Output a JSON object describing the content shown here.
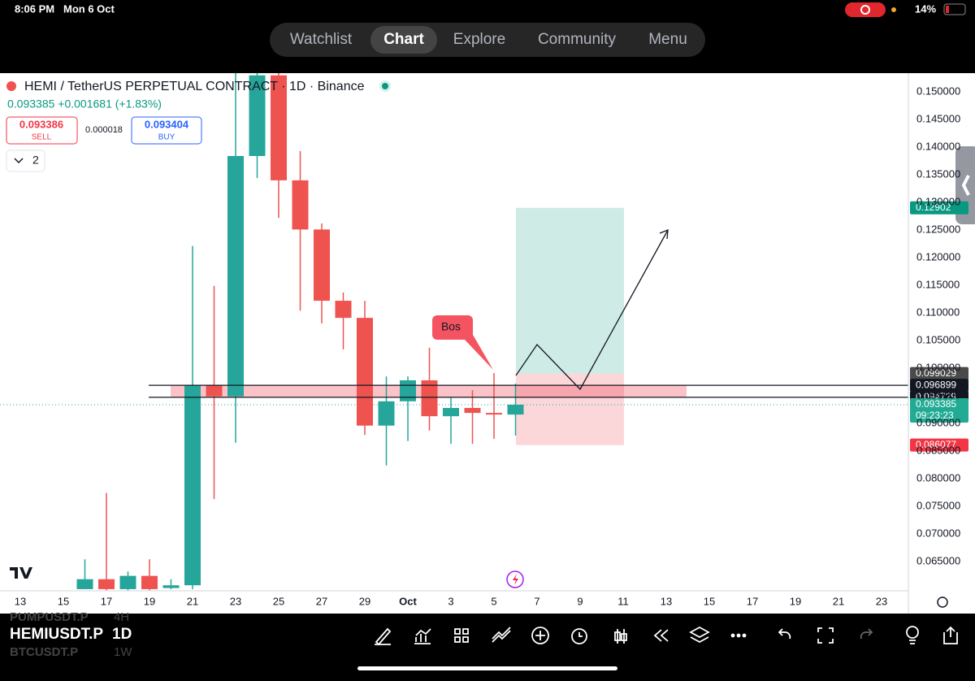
{
  "status_bar": {
    "time": "8:06 PM",
    "date": "Mon 6 Oct",
    "battery": "14%"
  },
  "nav": {
    "tabs": [
      "Watchlist",
      "Chart",
      "Explore",
      "Community",
      "Menu"
    ]
  },
  "chart_header": {
    "title": "HEMI / TetherUS PERPETUAL CONTRACT · 1D · Binance",
    "price_line": "0.093385 +0.001681 (+1.83%)",
    "sell_price": "0.093386",
    "sell_label": "SELL",
    "spread": "0.000018",
    "buy_price": "0.093404",
    "buy_label": "BUY",
    "indicator_count": "2"
  },
  "chart_data": {
    "type": "candlestick",
    "x": [
      "13",
      null,
      "15",
      null,
      "17",
      null,
      "19",
      null,
      "21",
      null,
      "23",
      null,
      "25",
      null,
      "27",
      null,
      "29",
      null,
      "Oct",
      null,
      "3",
      null,
      "5",
      null,
      "7",
      null,
      "9",
      null,
      "11",
      null,
      "13",
      null,
      "15",
      null,
      "17",
      null,
      "19",
      null,
      "21",
      null,
      "23"
    ],
    "open": [
      null,
      null,
      null,
      0.06,
      0.0618,
      0.06,
      0.0624,
      0.0602,
      0.0607,
      0.0969,
      0.0949,
      0.1384,
      0.153,
      0.134,
      0.1251,
      0.1122,
      0.1091,
      0.0896,
      0.094,
      0.0978,
      0.0913,
      0.0928,
      0.0919,
      0.0916,
      null,
      null,
      null,
      null,
      null,
      null,
      null,
      null,
      null,
      null,
      null,
      null,
      null,
      null,
      null,
      null,
      null
    ],
    "high": [
      null,
      null,
      null,
      0.0654,
      0.0774,
      0.0632,
      0.0654,
      0.0618,
      0.1221,
      0.1149,
      0.1534,
      0.1534,
      0.1534,
      0.1393,
      0.1262,
      0.1137,
      0.1122,
      0.0985,
      0.0985,
      0.1037,
      0.0947,
      0.096,
      0.0991,
      0.0972,
      null,
      null,
      null,
      null,
      null,
      null,
      null,
      null,
      null,
      null,
      null,
      null,
      null,
      null,
      null,
      null,
      null
    ],
    "low": [
      null,
      null,
      null,
      0.06,
      0.0598,
      0.0598,
      0.0598,
      0.06,
      0.06,
      0.0763,
      0.0865,
      0.1344,
      0.1272,
      0.1104,
      0.1081,
      0.1034,
      0.0879,
      0.0824,
      0.0868,
      0.0887,
      0.0863,
      0.0863,
      0.0872,
      0.0878,
      null,
      null,
      null,
      null,
      null,
      null,
      null,
      null,
      null,
      null,
      null,
      null,
      null,
      null,
      null,
      null,
      null
    ],
    "close": [
      null,
      null,
      null,
      0.0618,
      0.06,
      0.0624,
      0.06,
      0.0607,
      0.0969,
      0.0949,
      0.1384,
      0.153,
      0.134,
      0.1251,
      0.1122,
      0.1091,
      0.0896,
      0.094,
      0.0978,
      0.0913,
      0.0928,
      0.0919,
      0.0916,
      0.093385,
      null,
      null,
      null,
      null,
      null,
      null,
      null,
      null,
      null,
      null,
      null,
      null,
      null,
      null,
      null,
      null,
      null
    ],
    "up_color": "#26a69a",
    "down_color": "#ef5350",
    "ylim": [
      0.0597,
      0.1534
    ],
    "yticks": [
      {
        "value": 0.15,
        "label": "0.150000"
      },
      {
        "value": 0.145,
        "label": "0.145000"
      },
      {
        "value": 0.14,
        "label": "0.140000"
      },
      {
        "value": 0.135,
        "label": "0.135000"
      },
      {
        "value": 0.13,
        "label": "0.130000"
      },
      {
        "value": 0.125,
        "label": "0.125000"
      },
      {
        "value": 0.12,
        "label": "0.120000"
      },
      {
        "value": 0.115,
        "label": "0.115000"
      },
      {
        "value": 0.11,
        "label": "0.110000"
      },
      {
        "value": 0.105,
        "label": "0.105000"
      },
      {
        "value": 0.1,
        "label": "0.100000"
      },
      {
        "value": 0.095,
        "label": "0.095000"
      },
      {
        "value": 0.09,
        "label": "0.090000"
      },
      {
        "value": 0.085,
        "label": "0.085000"
      },
      {
        "value": 0.08,
        "label": "0.080000"
      },
      {
        "value": 0.075,
        "label": "0.075000"
      },
      {
        "value": 0.07,
        "label": "0.070000"
      },
      {
        "value": 0.065,
        "label": "0.065000"
      }
    ],
    "grid": false,
    "price_tags": [
      {
        "value": 0.12902,
        "color": "#089981"
      },
      {
        "value": 0.099029,
        "color": "#4a4a4a"
      },
      {
        "value": 0.096899,
        "color": "#131722"
      },
      {
        "value": 0.094729,
        "color": "#131722"
      },
      {
        "value": 0.093385,
        "color": "#22ab94",
        "countdown": "09:23:23"
      },
      {
        "value": 0.086077,
        "color": "#f23645"
      }
    ],
    "annotation": "Bos"
  },
  "bottom_bar": {
    "symbol": "HEMIUSDT.P",
    "interval": "1D",
    "recent": [
      {
        "symbol": "PUMPUSDT.P",
        "interval": "4H"
      },
      {
        "symbol": "BTCUSDT.P",
        "interval": "1W"
      }
    ]
  }
}
